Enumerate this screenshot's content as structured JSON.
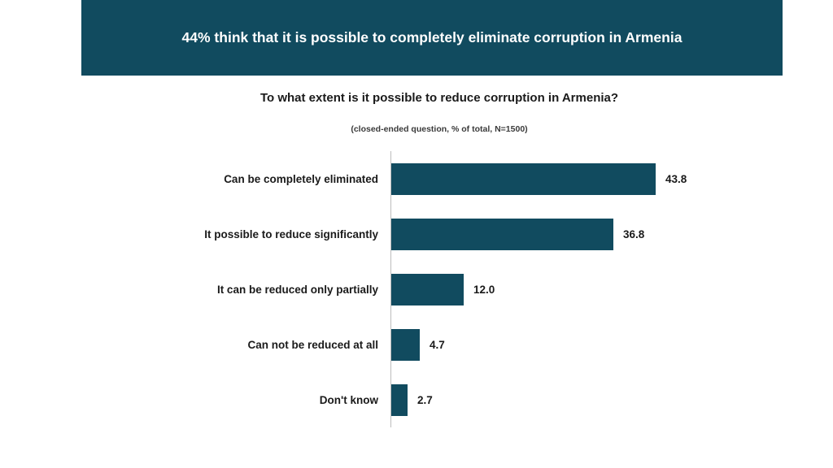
{
  "header": {
    "title": "44% think that it is possible to completely eliminate corruption in Armenia",
    "bg_color": "#114b5f",
    "text_color": "#ffffff"
  },
  "chart_data": {
    "type": "bar",
    "orientation": "horizontal",
    "title": "To what extent is it possible to reduce corruption in Armenia?",
    "subtitle": "(closed-ended question, %  of total, N=1500)",
    "categories": [
      "Can be completely eliminated",
      "It possible to reduce significantly",
      "It can be reduced only partially",
      "Can not be reduced at all",
      "Don't know"
    ],
    "values": [
      43.8,
      36.8,
      12.0,
      4.7,
      2.7
    ],
    "value_labels": [
      "43.8",
      "36.8",
      "12.0",
      "4.7",
      "2.7"
    ],
    "bar_color": "#114b5f",
    "axis_color": "#bdbdbd",
    "xlim": [
      0,
      45
    ],
    "grid": false,
    "legend": false
  }
}
